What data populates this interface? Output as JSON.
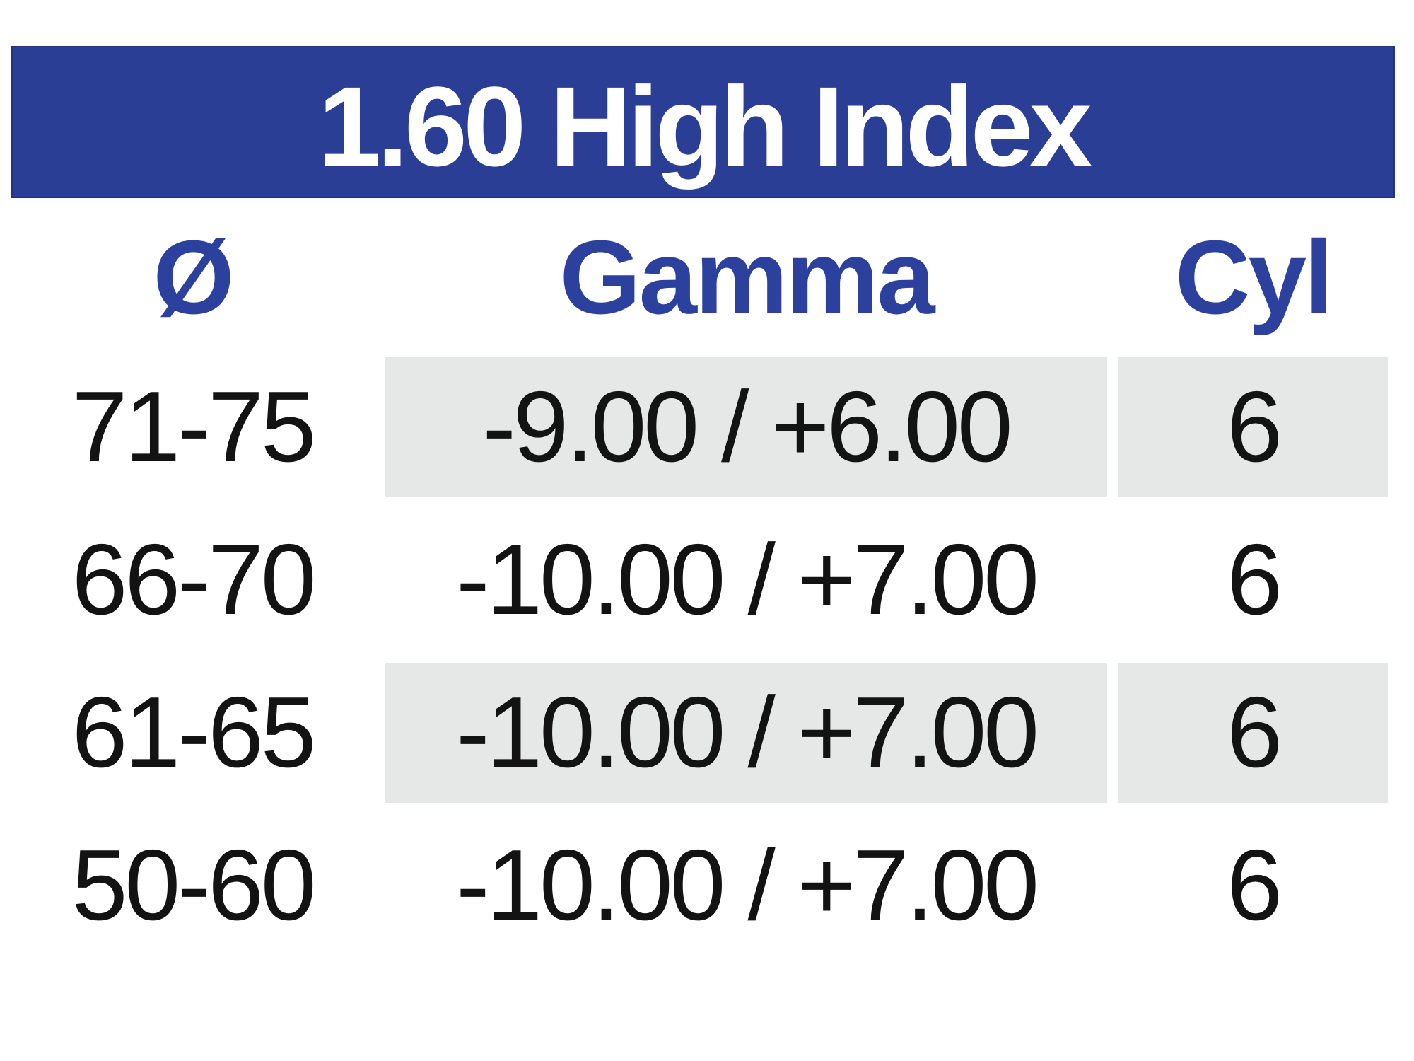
{
  "title_bar": {
    "label": "1.60 High Index"
  },
  "header": {
    "diameter_label": "Ø",
    "gamma_label": "Gamma",
    "cyl_label": "Cyl"
  },
  "rows": [
    {
      "diameter": "71-75",
      "gamma": "-9.00 / +6.00",
      "cyl": "6",
      "shaded": true
    },
    {
      "diameter": "66-70",
      "gamma": "-10.00 / +7.00",
      "cyl": "6",
      "shaded": false
    },
    {
      "diameter": "61-65",
      "gamma": "-10.00 / +7.00",
      "cyl": "6",
      "shaded": true
    },
    {
      "diameter": "50-60",
      "gamma": "-10.00 / +7.00",
      "cyl": "6",
      "shaded": false
    }
  ],
  "colors": {
    "bar_bg": "#2b3e96",
    "bar_border": "#24337d",
    "bar_text": "#ffffff",
    "header_text": "#2c409e",
    "body_text": "#131313",
    "shaded_cell": "#e6e7e7",
    "page_bg": "#ffffff"
  },
  "chart_data": {
    "type": "table",
    "title": "1.60 High Index",
    "columns": [
      "Ø",
      "Gamma",
      "Cyl"
    ],
    "rows": [
      [
        "71-75",
        "-9.00 / +6.00",
        "6"
      ],
      [
        "66-70",
        "-10.00 / +7.00",
        "6"
      ],
      [
        "61-65",
        "-10.00 / +7.00",
        "6"
      ],
      [
        "50-60",
        "-10.00 / +7.00",
        "6"
      ]
    ]
  }
}
